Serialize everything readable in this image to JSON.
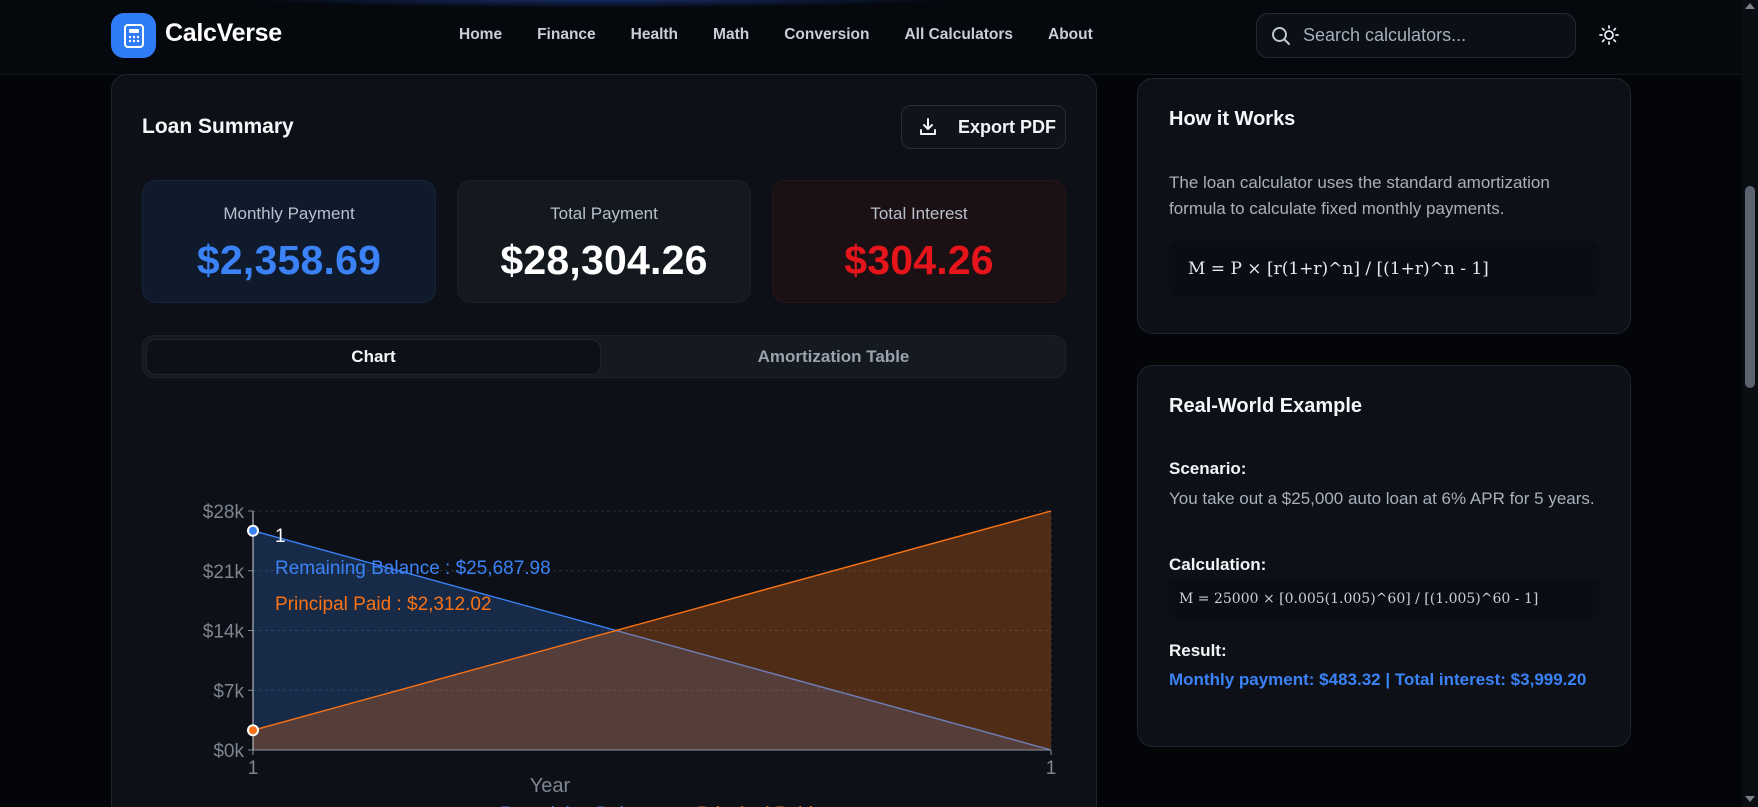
{
  "header": {
    "brand": "CalcVerse",
    "logo_icon": "calculator-icon",
    "nav": [
      "Home",
      "Finance",
      "Health",
      "Math",
      "Conversion",
      "All Calculators",
      "About"
    ],
    "search_placeholder": "Search calculators...",
    "theme_icon": "sun-icon"
  },
  "summary": {
    "title": "Loan Summary",
    "export_label": "Export PDF",
    "monthly_label": "Monthly Payment",
    "monthly_value": "$2,358.69",
    "total_label": "Total Payment",
    "total_value": "$28,304.26",
    "interest_label": "Total Interest",
    "interest_value": "$304.26"
  },
  "tabs": {
    "chart": "Chart",
    "table": "Amortization Table",
    "active": "Chart"
  },
  "chart_data": {
    "type": "area",
    "x": [
      "1",
      "1"
    ],
    "xlabel": "Year",
    "ylabel": "",
    "ylim": [
      0,
      28000
    ],
    "y_ticks": [
      "$0k",
      "$7k",
      "$14k",
      "$21k",
      "$28k"
    ],
    "grid": true,
    "legend_position": "bottom",
    "series": [
      {
        "name": "Remaining Balance",
        "color": "#3b82f6",
        "values": [
          25687.98,
          0
        ]
      },
      {
        "name": "Principal Paid",
        "color": "#f97316",
        "values": [
          2312.02,
          28000
        ]
      }
    ],
    "tooltip": {
      "title": "1",
      "lines": [
        "Remaining Balance : $25,687.98",
        "Principal Paid : $2,312.02"
      ]
    }
  },
  "how_it_works": {
    "title": "How it Works",
    "text": "The loan calculator uses the standard amortization formula to calculate fixed monthly payments.",
    "formula": "M = P × [r(1+r)^n] / [(1+r)^n - 1]"
  },
  "example": {
    "title": "Real-World Example",
    "scenario_label": "Scenario:",
    "scenario_text": "You take out a $25,000 auto loan at 6% APR for 5 years.",
    "calculation_label": "Calculation:",
    "calculation": "M = 25000 × [0.005(1.005)^60] / [(1.005)^60 - 1]",
    "result_label": "Result:",
    "result_text": "Monthly payment: $483.32 | Total interest: $3,999.20"
  }
}
